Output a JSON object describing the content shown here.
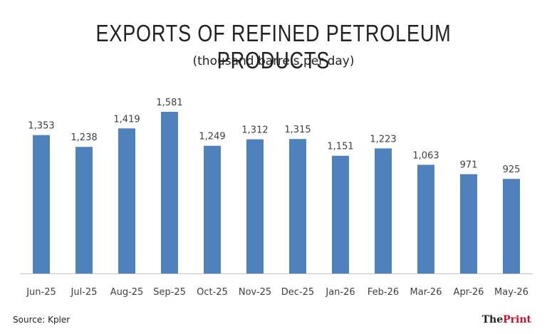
{
  "header": {
    "title": "EXPORTS OF REFINED PETROLEUM PRODUCTS",
    "subtitle": "(thousand barrels per day)"
  },
  "footer": {
    "source": "Source: Kpler",
    "brand_prefix": "The",
    "brand_name": "Print"
  },
  "colors": {
    "bar": "#4f81bd",
    "axis": "#bfbfbf",
    "label": "#404040",
    "brand_accent": "#c8102e"
  },
  "chart_data": {
    "type": "bar",
    "title": "EXPORTS OF REFINED PETROLEUM PRODUCTS",
    "subtitle": "(thousand barrels per day)",
    "categories": [
      "Jun-25",
      "Jul-25",
      "Aug-25",
      "Sep-25",
      "Oct-25",
      "Nov-25",
      "Dec-25",
      "Jan-26",
      "Feb-26",
      "Mar-26",
      "Apr-26",
      "May-26"
    ],
    "values": [
      1353,
      1238,
      1419,
      1581,
      1249,
      1312,
      1315,
      1151,
      1223,
      1063,
      971,
      925
    ],
    "value_labels": [
      "1,353",
      "1,238",
      "1,419",
      "1,581",
      "1,249",
      "1,312",
      "1,315",
      "1,151",
      "1,223",
      "1,063",
      "971",
      "925"
    ],
    "ylim": [
      0,
      1581
    ],
    "grid": false,
    "legend": "none"
  }
}
